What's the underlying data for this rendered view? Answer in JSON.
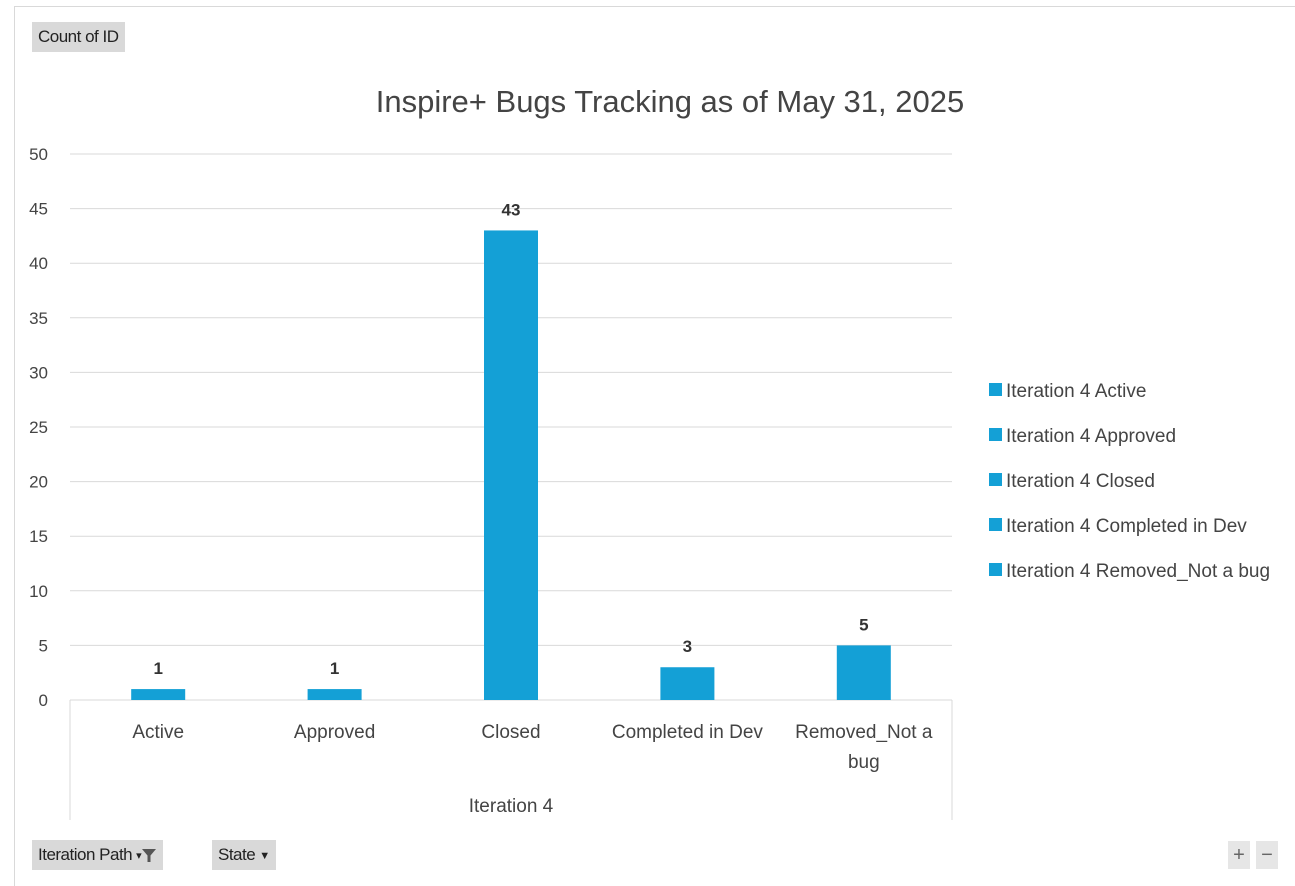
{
  "field_buttons": {
    "values_field": "Count of ID",
    "axis_field_1": "Iteration Path",
    "axis_field_2": "State"
  },
  "zoom": {
    "plus": "+",
    "minus": "−"
  },
  "chart_data": {
    "type": "bar",
    "title": "Inspire+ Bugs Tracking as of May 31, 2025",
    "categories": [
      "Active",
      "Approved",
      "Closed",
      "Completed in Dev",
      "Removed_Not a bug"
    ],
    "category_group": "Iteration 4",
    "values": [
      1,
      1,
      43,
      3,
      5
    ],
    "ylim": [
      0,
      50
    ],
    "yticks": [
      0,
      5,
      10,
      15,
      20,
      25,
      30,
      35,
      40,
      45,
      50
    ],
    "grid": true,
    "bar_color": "#14a0d6",
    "legend": {
      "position": "right",
      "entries": [
        "Iteration 4 Active",
        "Iteration 4 Approved",
        "Iteration 4 Closed",
        "Iteration 4 Completed in Dev",
        "Iteration 4 Removed_Not a bug"
      ]
    }
  }
}
